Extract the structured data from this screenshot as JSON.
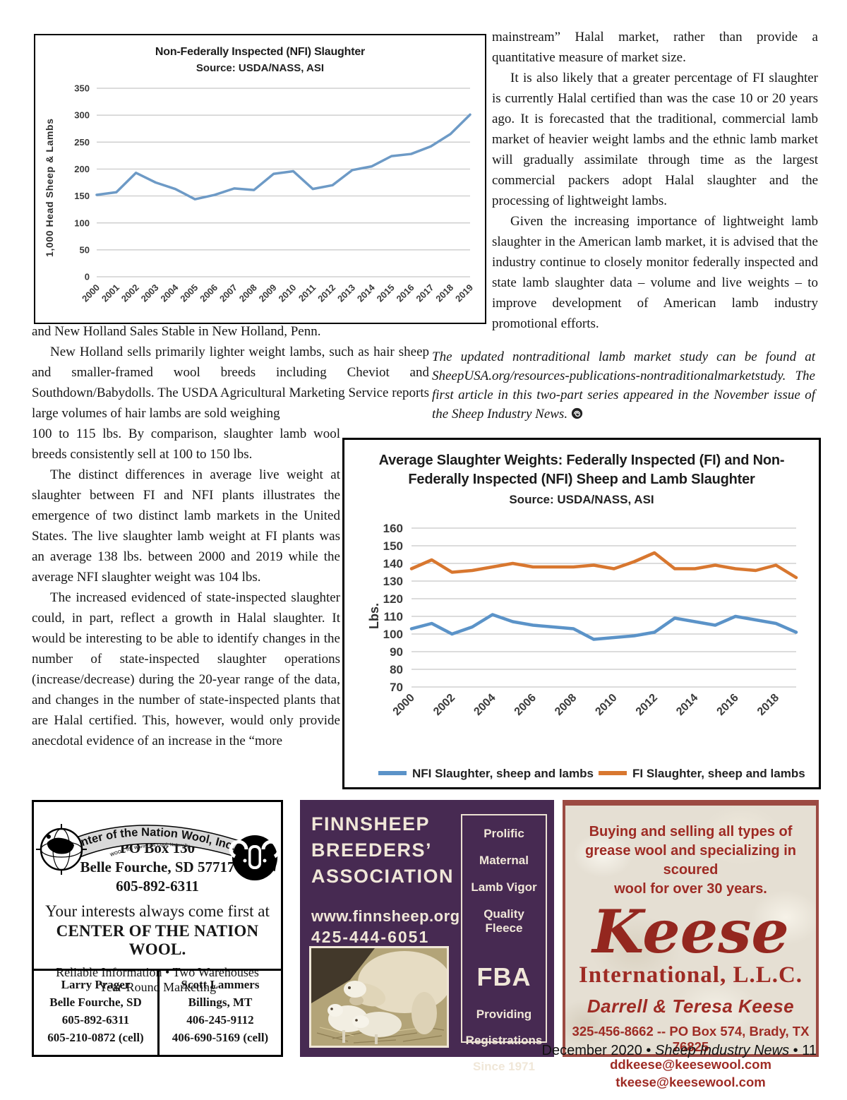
{
  "article": {
    "right_column": {
      "p1": "mainstream” Halal market, rather than provide a quantitative measure of market size.",
      "p2": "It is also likely that a greater percentage of FI slaughter is currently Halal certified than was the case 10 or 20 years ago. It is forecasted that the traditional, commercial lamb market of heavier weight lambs and the ethnic lamb market will gradually assimilate through time as the largest commercial packers adopt Halal slaughter and the processing of lightweight lambs.",
      "p3": "Given the increasing importance of lightweight lamb slaughter in the American lamb market, it is advised that the industry continue to closely monitor federally inspected and state lamb slaughter data – volume and live weights – to improve development of American lamb industry promotional efforts.",
      "note": "The updated nontraditional lamb market study can be found at SheepUSA.org/resources-publications-nontraditionalmarketstudy. The first article in this two-part series appeared in the November issue of the Sheep Industry News."
    },
    "left_column": {
      "p1": "and New Holland Sales Stable in New Holland, Penn.",
      "p2a": "New Holland sells primarily lighter weight lambs, such as hair sheep and smaller-framed wool breeds including Cheviot and Southdown/Babydolls. The USDA Agricultural Marketing Service reports large volumes of hair lambs are sold weighing",
      "p2b": "100 to 115 lbs. By comparison, slaughter lamb wool breeds consistently sell at 100 to 150 lbs.",
      "p3": "The distinct differences in average live weight at slaughter between FI and NFI plants illustrates the emergence of two distinct lamb markets in the United States. The live slaughter lamb weight at FI plants was an average 138 lbs. between 2000 and 2019 while the average NFI slaughter weight was 104 lbs.",
      "p4": "The increased evidenced of state-inspected slaughter could, in part, reflect a growth in Halal slaughter. It would be interesting to be able to identify changes in the number of state-inspected slaughter operations (increase/decrease) during the 20-year range of the data, and changes in the number of state-inspected plants that are Halal certified. This, however, would only provide anecdotal evidence of an increase in the “more"
    }
  },
  "chart_data": [
    {
      "type": "line",
      "title": "Non-Federally Inspected (NFI) Slaughter",
      "subtitle": "Source: USDA/NASS, ASI",
      "ylabel": "1,000 Head Sheep & Lambs",
      "x": [
        2000,
        2001,
        2002,
        2003,
        2004,
        2005,
        2006,
        2007,
        2008,
        2009,
        2010,
        2011,
        2012,
        2013,
        2014,
        2015,
        2016,
        2017,
        2018,
        2019
      ],
      "series": [
        {
          "name": "NFI Slaughter",
          "color": "#6d9ac6",
          "values": [
            152,
            157,
            193,
            175,
            163,
            144,
            152,
            164,
            161,
            191,
            196,
            163,
            170,
            198,
            205,
            224,
            228,
            242,
            265,
            301
          ]
        }
      ],
      "ylim": [
        0,
        350
      ],
      "ystep": 50,
      "grid": true,
      "xtick_every": 1,
      "legend_position": "none"
    },
    {
      "type": "line",
      "title_lines": [
        "Average Slaughter Weights: Federally Inspected (FI) and Non-",
        "Federally Inspected (NFI) Sheep and Lamb Slaughter"
      ],
      "subtitle": "Source: USDA/NASS, ASI",
      "ylabel": "Lbs.",
      "x": [
        2000,
        2001,
        2002,
        2003,
        2004,
        2005,
        2006,
        2007,
        2008,
        2009,
        2010,
        2011,
        2012,
        2013,
        2014,
        2015,
        2016,
        2017,
        2018,
        2019
      ],
      "series": [
        {
          "name": "NFI Slaughter, sheep and lambs",
          "color": "#5b93c8",
          "values": [
            103,
            106,
            100,
            104,
            111,
            107,
            105,
            104,
            103,
            97,
            98,
            99,
            101,
            109,
            107,
            105,
            110,
            108,
            106,
            101
          ]
        },
        {
          "name": "FI Slaughter, sheep and lambs",
          "color": "#d8772f",
          "values": [
            137,
            142,
            135,
            136,
            138,
            140,
            138,
            138,
            138,
            139,
            137,
            141,
            146,
            137,
            137,
            139,
            137,
            136,
            139,
            132
          ]
        }
      ],
      "ylim": [
        70,
        160
      ],
      "ystep": 10,
      "grid": true,
      "xtick_every": 2,
      "legend_position": "bottom"
    }
  ],
  "ads": {
    "center_of_nation": {
      "banner_title": "Center of the Nation Wool, Inc.",
      "banner_tagline": "WOOL, it's Warm, it's Cool, Naturally",
      "address1": "PO Box 130",
      "address2": "Belle Fourche, SD 57717",
      "phone": "605-892-6311",
      "tagline1": "Your interests always come first at",
      "tagline2": "CENTER OF THE NATION WOOL.",
      "features1": "Reliable Information • Two Warehouses",
      "features2": "Year-Round Marketing",
      "contact_left": {
        "name": "Larry Prager",
        "city": "Belle Fourche, SD",
        "phone": "605-892-6311",
        "cell": "605-210-0872 (cell)"
      },
      "contact_right": {
        "name": "Scott Lammers",
        "city": "Billings, MT",
        "phone": "406-245-9112",
        "cell": "406-690-5169 (cell)"
      }
    },
    "finnsheep": {
      "title1": "FINNSHEEP",
      "title2": "BREEDERS’",
      "title3": "ASSOCIATION",
      "website": "www.finnsheep.org",
      "phone": "425-444-6051",
      "feature1": "Prolific",
      "feature2": "Maternal",
      "feature3": "Lamb Vigor",
      "feature4": "Quality Fleece",
      "acronym": "FBA",
      "tag1": "Providing",
      "tag2": "Registrations",
      "tag3": "Since 1971",
      "colors": {
        "background": "#472a52",
        "text": "#f0e7d8"
      }
    },
    "keese": {
      "intro1": "Buying and selling all types of",
      "intro2": "grease wool and specializing in scoured",
      "intro3": "wool for over 30 years.",
      "name": "Keese",
      "subname": "International, L.L.C.",
      "owners": "Darrell & Teresa Keese",
      "contact": "325-456-8662 -- PO Box 574, Brady, TX 76825",
      "email1": "ddkeese@keesewool.com",
      "email2": "tkeese@keesewool.com",
      "colors": {
        "text": "#9e2b24",
        "border": "#9c4a42"
      }
    }
  },
  "footer": {
    "date": "December 2020",
    "separator": "•",
    "magazine": "Sheep Industry News",
    "page_number": "11"
  }
}
